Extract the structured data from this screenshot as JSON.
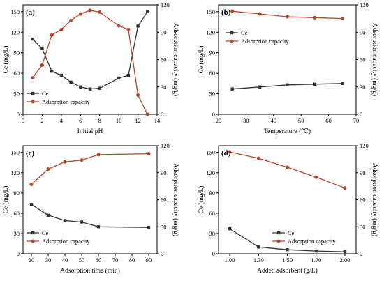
{
  "figure": {
    "colors": {
      "ce": "#333333",
      "adsorption": "#b5462b",
      "axis": "#000000"
    }
  },
  "chart_data": [
    {
      "type": "line",
      "panel_label": "(a)",
      "xlabel": "Initial pH",
      "ylabel_left": "Ce (mg/L)",
      "ylabel_right": "Adsorption capacity (mg/g)",
      "xlim": [
        0,
        14
      ],
      "x_ticks": [
        0,
        2,
        4,
        6,
        8,
        10,
        12,
        14
      ],
      "x_tick_labels": [
        "0",
        "2",
        "4",
        "6",
        "8",
        "10",
        "12",
        "14"
      ],
      "ylim_left": [
        0,
        160
      ],
      "y_ticks_left": [
        0,
        30,
        60,
        90,
        120,
        150
      ],
      "ylim_right": [
        0,
        120
      ],
      "y_ticks_right": [
        0,
        30,
        60,
        90,
        120
      ],
      "legend": {
        "position": "lower-left",
        "entries": [
          "Ce",
          "Adsorption capacity"
        ]
      },
      "series": [
        {
          "name": "Ce",
          "axis": "left",
          "color": "#333333",
          "x": [
            1,
            2,
            3,
            4,
            5,
            6,
            7,
            8,
            10,
            11,
            12,
            13
          ],
          "y": [
            110,
            96,
            63,
            57,
            47,
            40,
            37,
            38,
            53,
            57,
            129,
            150
          ]
        },
        {
          "name": "Adsorption capacity",
          "axis": "right",
          "color": "#b5462b",
          "x": [
            1,
            2,
            3,
            4,
            5,
            6,
            7,
            8,
            10,
            11,
            12,
            13
          ],
          "y": [
            40,
            54,
            87,
            93,
            103,
            110,
            114,
            112,
            97,
            93,
            21,
            0
          ]
        }
      ]
    },
    {
      "type": "line",
      "panel_label": "(b)",
      "xlabel": "Temperature (℃)",
      "ylabel_left": "Ce (mg/L)",
      "ylabel_right": "Adsorption capacity (mg/g)",
      "xlim": [
        20,
        70
      ],
      "x_ticks": [
        20,
        30,
        40,
        50,
        60,
        70
      ],
      "x_tick_labels": [
        "20",
        "30",
        "40",
        "50",
        "60",
        "70"
      ],
      "ylim_left": [
        0,
        160
      ],
      "y_ticks_left": [
        0,
        30,
        60,
        90,
        120,
        150
      ],
      "ylim_right": [
        0,
        120
      ],
      "y_ticks_right": [
        0,
        30,
        60,
        90,
        120
      ],
      "legend": {
        "position": "center-right",
        "entries": [
          "Ce",
          "Adsorption capacity"
        ]
      },
      "series": [
        {
          "name": "Ce",
          "axis": "left",
          "color": "#333333",
          "x": [
            25,
            35,
            45,
            55,
            65
          ],
          "y": [
            37,
            40,
            43,
            44,
            45
          ]
        },
        {
          "name": "Adsorption capacity",
          "axis": "right",
          "color": "#b5462b",
          "x": [
            25,
            35,
            45,
            55,
            65
          ],
          "y": [
            113,
            110,
            107,
            106,
            105
          ]
        }
      ]
    },
    {
      "type": "line",
      "panel_label": "(c)",
      "xlabel": "Adsorption time (min)",
      "ylabel_left": "Ce (mg/L)",
      "ylabel_right": "Adsorption capacity (mg/g)",
      "xlim": [
        15,
        95
      ],
      "x_ticks": [
        20,
        30,
        40,
        50,
        60,
        70,
        80,
        90
      ],
      "x_tick_labels": [
        "20",
        "30",
        "40",
        "50",
        "60",
        "70",
        "80",
        "90"
      ],
      "ylim_left": [
        0,
        160
      ],
      "y_ticks_left": [
        0,
        30,
        60,
        90,
        120,
        150
      ],
      "ylim_right": [
        0,
        120
      ],
      "y_ticks_right": [
        0,
        30,
        60,
        90,
        120
      ],
      "legend": {
        "position": "lower-left",
        "entries": [
          "Ce",
          "Adsorption capacity"
        ]
      },
      "series": [
        {
          "name": "Ce",
          "axis": "left",
          "color": "#333333",
          "x": [
            20,
            30,
            40,
            50,
            60,
            90
          ],
          "y": [
            73,
            57,
            49,
            47,
            40,
            39
          ]
        },
        {
          "name": "Adsorption capacity",
          "axis": "right",
          "color": "#b5462b",
          "x": [
            20,
            30,
            40,
            50,
            60,
            90
          ],
          "y": [
            77,
            94,
            102,
            104,
            110,
            111
          ]
        }
      ]
    },
    {
      "type": "line",
      "panel_label": "(d)",
      "xlabel": "Added adsorbent (g/L)",
      "ylabel_left": "Ce (mg/L)",
      "ylabel_right": "Adsorption capacity (mg/g)",
      "xlim": [
        0.85,
        2.15
      ],
      "x_ticks": [
        1.0,
        1.3,
        1.5,
        1.7,
        2.0
      ],
      "x_tick_labels": [
        "1.00",
        "1.30",
        "1.50",
        "1.70",
        "2.00"
      ],
      "x_categorical": true,
      "ylim_left": [
        0,
        160
      ],
      "y_ticks_left": [
        0,
        30,
        60,
        90,
        120,
        150
      ],
      "ylim_right": [
        0,
        120
      ],
      "y_ticks_right": [
        0,
        30,
        60,
        90,
        120
      ],
      "legend": {
        "position": "lower-right",
        "entries": [
          "Ce",
          "Adsorption capacity"
        ]
      },
      "series": [
        {
          "name": "Ce",
          "axis": "left",
          "color": "#333333",
          "x": [
            1.0,
            1.3,
            1.5,
            1.7,
            2.0
          ],
          "y": [
            37,
            10,
            6,
            4,
            3
          ]
        },
        {
          "name": "Adsorption capacity",
          "axis": "right",
          "color": "#b5462b",
          "x": [
            1.0,
            1.3,
            1.5,
            1.7,
            2.0
          ],
          "y": [
            113,
            106,
            96,
            85,
            73
          ]
        }
      ]
    }
  ]
}
